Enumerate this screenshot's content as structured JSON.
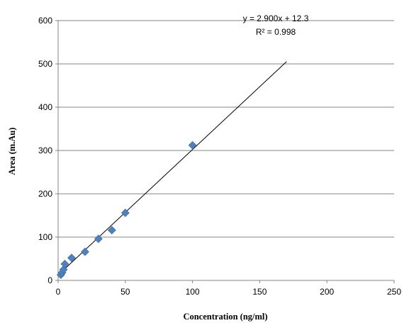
{
  "chart_data": {
    "type": "scatter",
    "xlabel": "Concentration (ng/ml)",
    "ylabel": "Area (m.Au)",
    "xlim": [
      0,
      250
    ],
    "ylim": [
      0,
      600
    ],
    "x_ticks": [
      "0",
      "50",
      "100",
      "150",
      "200",
      "250"
    ],
    "y_ticks": [
      "0",
      "100",
      "200",
      "300",
      "400",
      "500",
      "600"
    ],
    "grid": "horizontal",
    "series": [
      {
        "color": "#4f81bd",
        "marker": "diamond",
        "points": [
          {
            "x": 2,
            "y": 13
          },
          {
            "x": 3,
            "y": 18
          },
          {
            "x": 4,
            "y": 25
          },
          {
            "x": 5,
            "y": 38
          },
          {
            "x": 10,
            "y": 52
          },
          {
            "x": 20,
            "y": 66
          },
          {
            "x": 30,
            "y": 96
          },
          {
            "x": 40,
            "y": 116
          },
          {
            "x": 50,
            "y": 156
          },
          {
            "x": 100,
            "y": 312
          }
        ]
      }
    ],
    "trendline": {
      "type": "linear",
      "slope": 2.9,
      "intercept": 12.3,
      "x_range": [
        0,
        170
      ],
      "color": "#000000",
      "equation_text": "y = 2.900x + 12.3",
      "r2_text": "R² = 0.998"
    }
  }
}
